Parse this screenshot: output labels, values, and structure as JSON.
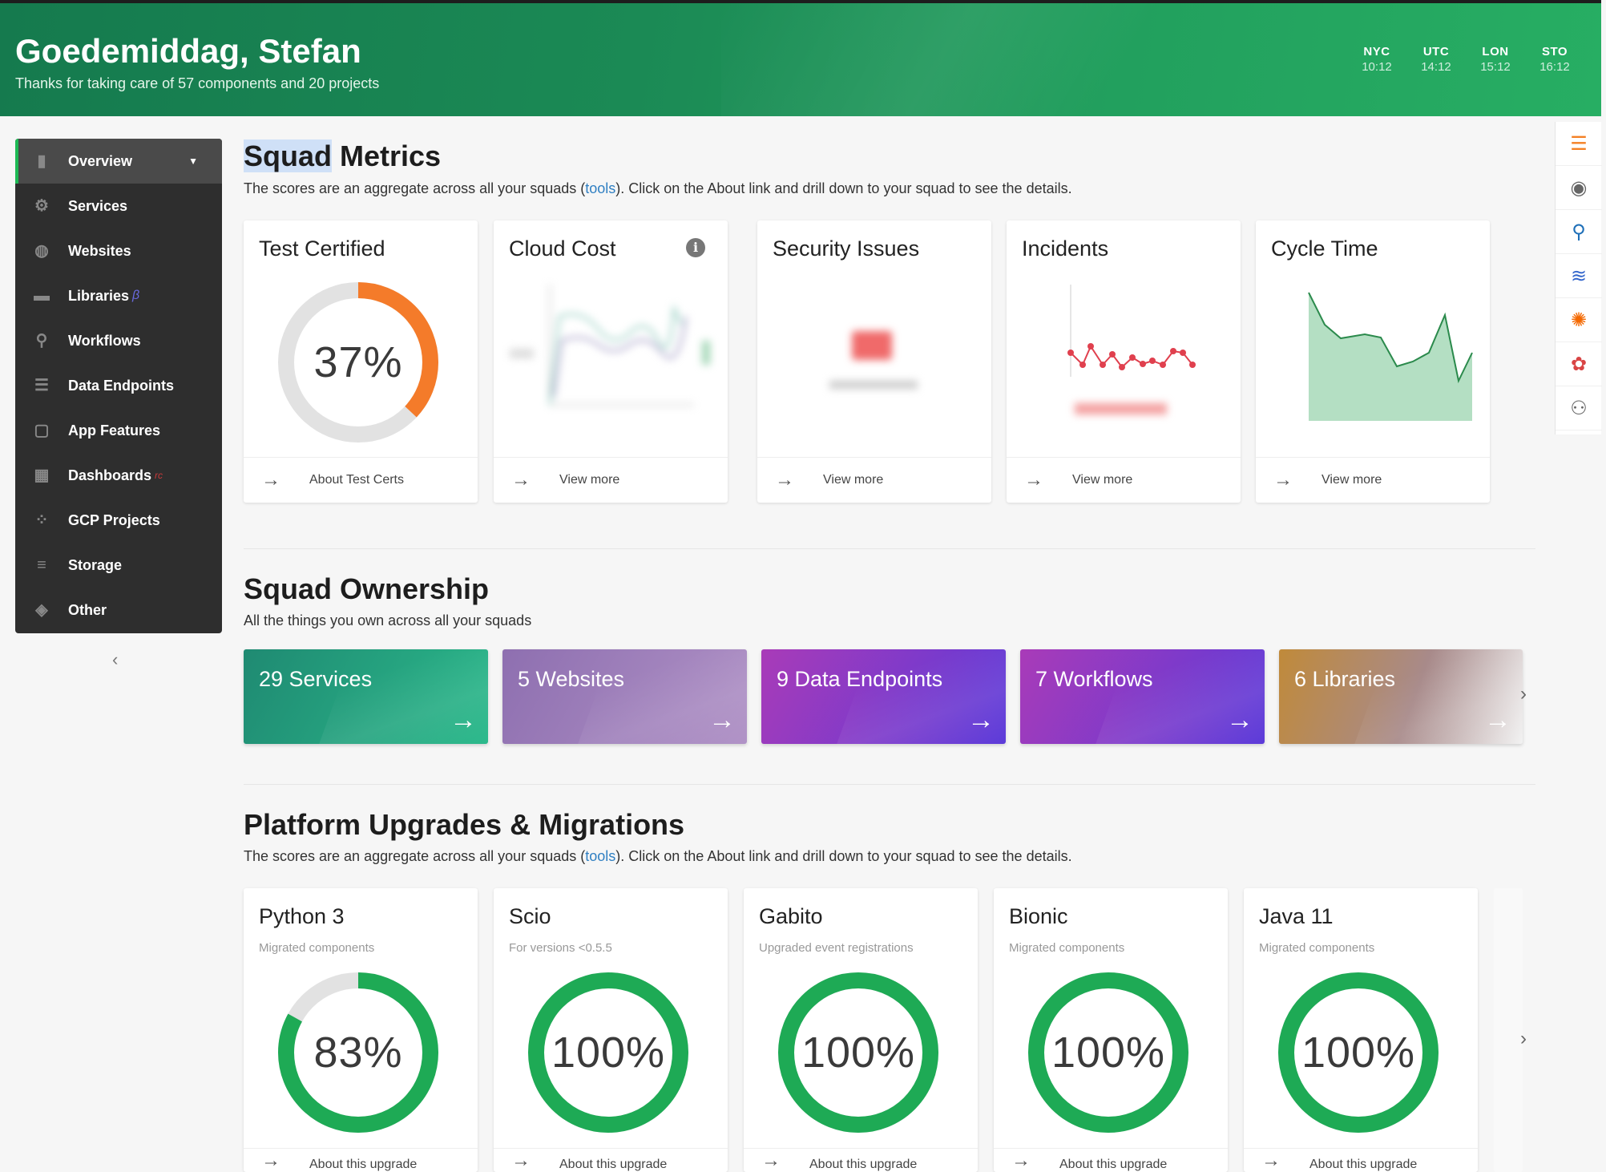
{
  "header": {
    "greeting": "Goedemiddag, Stefan",
    "subtitle": "Thanks for taking care of 57 components and 20 projects",
    "clocks": [
      {
        "city": "NYC",
        "time": "10:12"
      },
      {
        "city": "UTC",
        "time": "14:12"
      },
      {
        "city": "LON",
        "time": "15:12"
      },
      {
        "city": "STO",
        "time": "16:12"
      }
    ]
  },
  "sidebar": {
    "items": [
      {
        "label": "Overview",
        "icon": "overview-icon"
      },
      {
        "label": "Services",
        "icon": "services-icon"
      },
      {
        "label": "Websites",
        "icon": "globe-icon"
      },
      {
        "label": "Libraries",
        "icon": "library-icon",
        "badge": "β"
      },
      {
        "label": "Workflows",
        "icon": "workflow-icon"
      },
      {
        "label": "Data Endpoints",
        "icon": "data-endpoints-icon"
      },
      {
        "label": "App Features",
        "icon": "app-features-icon"
      },
      {
        "label": "Dashboards",
        "icon": "dashboard-icon",
        "badge": "rc"
      },
      {
        "label": "GCP Projects",
        "icon": "gcp-icon"
      },
      {
        "label": "Storage",
        "icon": "storage-icon"
      },
      {
        "label": "Other",
        "icon": "other-icon"
      }
    ],
    "collapse_glyph": "‹"
  },
  "squad_metrics": {
    "title_highlight": "Squad",
    "title_rest": " Metrics",
    "desc_before": "The scores are an aggregate across all your squads (",
    "desc_link": "tools",
    "desc_after": "). Click on the About link and drill down to your squad to see the details.",
    "cards": [
      {
        "title": "Test Certified",
        "value": "37%",
        "percent": 37,
        "footer": "About Test Certs"
      },
      {
        "title": "Cloud Cost",
        "footer": "View more"
      },
      {
        "title": "Security Issues",
        "footer": "View more"
      },
      {
        "title": "Incidents",
        "footer": "View more"
      },
      {
        "title": "Cycle Time",
        "footer": "View more"
      }
    ]
  },
  "squad_ownership": {
    "title": "Squad Ownership",
    "subtitle": "All the things you own across all your squads",
    "tiles": [
      {
        "label": "29 Services"
      },
      {
        "label": "5 Websites"
      },
      {
        "label": "9 Data Endpoints"
      },
      {
        "label": "7 Workflows"
      },
      {
        "label": "6 Libraries"
      }
    ]
  },
  "platform_upgrades": {
    "title": "Platform Upgrades & Migrations",
    "desc_before": "The scores are an aggregate across all your squads (",
    "desc_link": "tools",
    "desc_after": "). Click on the About link and drill down to your squad to see the details.",
    "cards": [
      {
        "title": "Python 3",
        "subtitle": "Migrated components",
        "value": "83%",
        "percent": 83,
        "footer": "About this upgrade"
      },
      {
        "title": "Scio",
        "subtitle": "For versions <0.5.5",
        "value": "100%",
        "percent": 100,
        "footer": "About this upgrade"
      },
      {
        "title": "Gabito",
        "subtitle": "Upgraded event registrations",
        "value": "100%",
        "percent": 100,
        "footer": "About this upgrade"
      },
      {
        "title": "Bionic",
        "subtitle": "Migrated components",
        "value": "100%",
        "percent": 100,
        "footer": "About this upgrade"
      },
      {
        "title": "Java 11",
        "subtitle": "Migrated components",
        "value": "100%",
        "percent": 100,
        "footer": "About this upgrade"
      }
    ]
  },
  "colors": {
    "accent_green": "#1db954",
    "donut_orange": "#f47b2a",
    "donut_green": "#1eaa55",
    "link_blue": "#2f7fc2"
  }
}
